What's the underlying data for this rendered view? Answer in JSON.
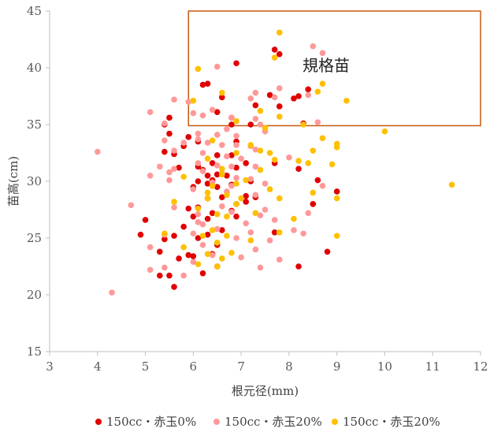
{
  "chart_data": {
    "type": "scatter",
    "xlabel": "根元径(mm)",
    "ylabel": "苗高(cm)",
    "xlim": [
      3,
      12
    ],
    "ylim": [
      15,
      45
    ],
    "xticks": [
      3,
      4,
      5,
      6,
      7,
      8,
      9,
      10,
      11,
      12
    ],
    "yticks": [
      15,
      20,
      25,
      30,
      35,
      40,
      45
    ],
    "grid": false,
    "legend_position": "bottom",
    "annotation": {
      "text": "規格苗",
      "box": {
        "x": [
          5.9,
          12
        ],
        "y": [
          34.9,
          45
        ]
      },
      "color": "#C55A11"
    },
    "series": [
      {
        "name": "150cc・赤玉0%",
        "color": "#E00000",
        "points": [
          [
            6.3,
            38.6
          ],
          [
            6.2,
            38.5
          ],
          [
            6.9,
            40.4
          ],
          [
            7.7,
            41.6
          ],
          [
            7.8,
            41.2
          ],
          [
            8.2,
            37.5
          ],
          [
            8.4,
            38.1
          ],
          [
            8.1,
            37.3
          ],
          [
            7.6,
            37.6
          ],
          [
            7.3,
            36.7
          ],
          [
            7.8,
            36.6
          ],
          [
            6.6,
            37.4
          ],
          [
            5.5,
            35.6
          ],
          [
            5.4,
            35
          ],
          [
            6.5,
            36.1
          ],
          [
            6.8,
            35.6
          ],
          [
            6.8,
            35
          ],
          [
            7.2,
            35
          ],
          [
            8.3,
            35.1
          ],
          [
            5.5,
            34.2
          ],
          [
            5.8,
            33.1
          ],
          [
            5.9,
            33.9
          ],
          [
            6.1,
            33.5
          ],
          [
            6.9,
            33.5
          ],
          [
            5.4,
            32.6
          ],
          [
            5.6,
            32.4
          ],
          [
            6.5,
            32.3
          ],
          [
            6.8,
            32.3
          ],
          [
            7.1,
            31.6
          ],
          [
            6.1,
            31.3
          ],
          [
            6.4,
            31.6
          ],
          [
            6.9,
            31.2
          ],
          [
            7.7,
            31.6
          ],
          [
            8.2,
            31.1
          ],
          [
            5.7,
            31.2
          ],
          [
            6.2,
            31
          ],
          [
            6.3,
            30.5
          ],
          [
            6.5,
            30.6
          ],
          [
            6.7,
            30.5
          ],
          [
            6.1,
            30
          ],
          [
            6.4,
            30.1
          ],
          [
            7.2,
            30
          ],
          [
            6.8,
            29.7
          ],
          [
            6,
            29.5
          ],
          [
            6.3,
            29.8
          ],
          [
            6.5,
            29.5
          ],
          [
            8.6,
            30.1
          ],
          [
            9,
            29.1
          ],
          [
            7.1,
            28.7
          ],
          [
            7.3,
            28.6
          ],
          [
            6.3,
            28.5
          ],
          [
            6.6,
            28.6
          ],
          [
            6.9,
            28
          ],
          [
            5.9,
            27.6
          ],
          [
            6.1,
            27.7
          ],
          [
            7.1,
            28.2
          ],
          [
            8.5,
            28
          ],
          [
            6.4,
            27.2
          ],
          [
            6.8,
            27.4
          ],
          [
            6.9,
            26.9
          ],
          [
            6,
            26.9
          ],
          [
            6.3,
            26.7
          ],
          [
            5,
            26.6
          ],
          [
            5.8,
            26
          ],
          [
            6.3,
            25.3
          ],
          [
            7.7,
            25.5
          ],
          [
            6.6,
            25.7
          ],
          [
            4.9,
            25.3
          ],
          [
            5.4,
            24.9
          ],
          [
            5.6,
            25.2
          ],
          [
            6.1,
            25
          ],
          [
            6.5,
            24.4
          ],
          [
            5.3,
            23.8
          ],
          [
            5.9,
            23.5
          ],
          [
            6,
            23.4
          ],
          [
            6.4,
            23.6
          ],
          [
            5.7,
            23.2
          ],
          [
            6.5,
            22.5
          ],
          [
            8.2,
            22.5
          ],
          [
            8.8,
            23.8
          ],
          [
            5.3,
            21.7
          ],
          [
            5.5,
            21.7
          ],
          [
            6.2,
            21.9
          ],
          [
            5.6,
            20.7
          ]
        ]
      },
      {
        "name": "150cc・赤玉20%",
        "color": "#FF9999",
        "points": [
          [
            8.5,
            41.9
          ],
          [
            8.7,
            41.3
          ],
          [
            7.8,
            38.2
          ],
          [
            7.3,
            37.8
          ],
          [
            7.2,
            37.3
          ],
          [
            7.7,
            37.4
          ],
          [
            8.4,
            37.6
          ],
          [
            5.6,
            37.2
          ],
          [
            5.9,
            37
          ],
          [
            6.5,
            40.1
          ],
          [
            6.4,
            36.3
          ],
          [
            6.2,
            35.8
          ],
          [
            6,
            36
          ],
          [
            5.1,
            36.1
          ],
          [
            5.4,
            35.1
          ],
          [
            6.8,
            35.6
          ],
          [
            7.3,
            35.5
          ],
          [
            7.4,
            35
          ],
          [
            8.6,
            35.2
          ],
          [
            6.1,
            34.2
          ],
          [
            6.5,
            34.1
          ],
          [
            6.7,
            34.6
          ],
          [
            6.9,
            34
          ],
          [
            7.5,
            34.4
          ],
          [
            5.4,
            33.6
          ],
          [
            5.8,
            33.4
          ],
          [
            6.1,
            33.7
          ],
          [
            6.3,
            33.4
          ],
          [
            6.6,
            33.2
          ],
          [
            6.9,
            33.2
          ],
          [
            7.2,
            33.1
          ],
          [
            7.3,
            32.8
          ],
          [
            4,
            32.6
          ],
          [
            5.6,
            32.7
          ],
          [
            6.2,
            32.5
          ],
          [
            6.7,
            32.2
          ],
          [
            7,
            32
          ],
          [
            8,
            32.1
          ],
          [
            5.3,
            31.3
          ],
          [
            5.6,
            31.1
          ],
          [
            6.1,
            31.6
          ],
          [
            6.5,
            31.4
          ],
          [
            6.8,
            31.3
          ],
          [
            7.3,
            31.3
          ],
          [
            5.1,
            30.5
          ],
          [
            5.5,
            30.8
          ],
          [
            6.2,
            30.9
          ],
          [
            6.6,
            30.7
          ],
          [
            6.9,
            30.3
          ],
          [
            7.2,
            30.2
          ],
          [
            5.5,
            30.1
          ],
          [
            6.4,
            29.9
          ],
          [
            6.8,
            29.6
          ],
          [
            7.5,
            29.8
          ],
          [
            8.7,
            29.6
          ],
          [
            6,
            29.3
          ],
          [
            6.7,
            29.1
          ],
          [
            7.3,
            28.8
          ],
          [
            4.7,
            27.9
          ],
          [
            5.6,
            27.7
          ],
          [
            6.6,
            27.8
          ],
          [
            7.5,
            27.5
          ],
          [
            6.1,
            27.1
          ],
          [
            6.8,
            27.3
          ],
          [
            7.4,
            27
          ],
          [
            8.4,
            27.2
          ],
          [
            6.2,
            26.2
          ],
          [
            7.1,
            26.3
          ],
          [
            7.7,
            26.6
          ],
          [
            6.5,
            25.8
          ],
          [
            7.2,
            25.5
          ],
          [
            8.1,
            25.7
          ],
          [
            5.4,
            25.3
          ],
          [
            6,
            25.4
          ],
          [
            6.9,
            25
          ],
          [
            7.6,
            24.8
          ],
          [
            8.3,
            25.4
          ],
          [
            5.1,
            24.2
          ],
          [
            6.2,
            24.4
          ],
          [
            7.3,
            24
          ],
          [
            6.4,
            23.5
          ],
          [
            7,
            23.3
          ],
          [
            7.8,
            23.1
          ],
          [
            5.4,
            22.4
          ],
          [
            6,
            22.9
          ],
          [
            5.1,
            22.2
          ],
          [
            5.8,
            21.7
          ],
          [
            7.4,
            22.4
          ],
          [
            4.3,
            20.2
          ],
          [
            6.1,
            26.4
          ]
        ]
      },
      {
        "name": "150cc・赤玉20%",
        "color": "#FFC000",
        "points": [
          [
            7.8,
            43.1
          ],
          [
            7.7,
            40.9
          ],
          [
            6.1,
            39.9
          ],
          [
            8.7,
            38.6
          ],
          [
            8.6,
            37.9
          ],
          [
            9.2,
            37.1
          ],
          [
            7.4,
            36.2
          ],
          [
            6.6,
            37.8
          ],
          [
            6,
            37.1
          ],
          [
            7.8,
            35.7
          ],
          [
            6.9,
            35.3
          ],
          [
            8.3,
            35
          ],
          [
            10,
            34.4
          ],
          [
            7.5,
            34.7
          ],
          [
            9,
            33.3
          ],
          [
            6.4,
            33.6
          ],
          [
            7.2,
            33.2
          ],
          [
            8.7,
            33.8
          ],
          [
            6.9,
            32.5
          ],
          [
            7.4,
            32.7
          ],
          [
            7.6,
            32.5
          ],
          [
            8.5,
            32.7
          ],
          [
            9,
            33
          ],
          [
            6.3,
            32
          ],
          [
            7.7,
            31.9
          ],
          [
            8.2,
            31.8
          ],
          [
            8.4,
            31.6
          ],
          [
            6.6,
            31.1
          ],
          [
            7.4,
            31
          ],
          [
            8.9,
            31.5
          ],
          [
            5.8,
            30.4
          ],
          [
            6.6,
            30.6
          ],
          [
            7.1,
            30.1
          ],
          [
            6.4,
            29.6
          ],
          [
            6.9,
            29.8
          ],
          [
            7.6,
            29.3
          ],
          [
            6.3,
            29
          ],
          [
            6.7,
            28.8
          ],
          [
            7,
            28.5
          ],
          [
            7.8,
            28.5
          ],
          [
            8.5,
            29
          ],
          [
            9,
            28.5
          ],
          [
            5.6,
            28.2
          ],
          [
            6.3,
            28.5
          ],
          [
            6.9,
            28
          ],
          [
            6.1,
            27.6
          ],
          [
            6.5,
            27.1
          ],
          [
            6.7,
            26.9
          ],
          [
            7.3,
            27.2
          ],
          [
            8.1,
            26.7
          ],
          [
            5.4,
            25.4
          ],
          [
            6.2,
            25.2
          ],
          [
            6.4,
            25.7
          ],
          [
            6.7,
            25.2
          ],
          [
            7.8,
            25.5
          ],
          [
            9,
            25.2
          ],
          [
            6.5,
            24.6
          ],
          [
            7.2,
            24.8
          ],
          [
            5.8,
            24.2
          ],
          [
            6.3,
            23.6
          ],
          [
            6.6,
            23.2
          ],
          [
            6.8,
            23.7
          ],
          [
            6.1,
            22.7
          ],
          [
            6.5,
            22.5
          ],
          [
            11.4,
            29.7
          ]
        ]
      }
    ]
  }
}
